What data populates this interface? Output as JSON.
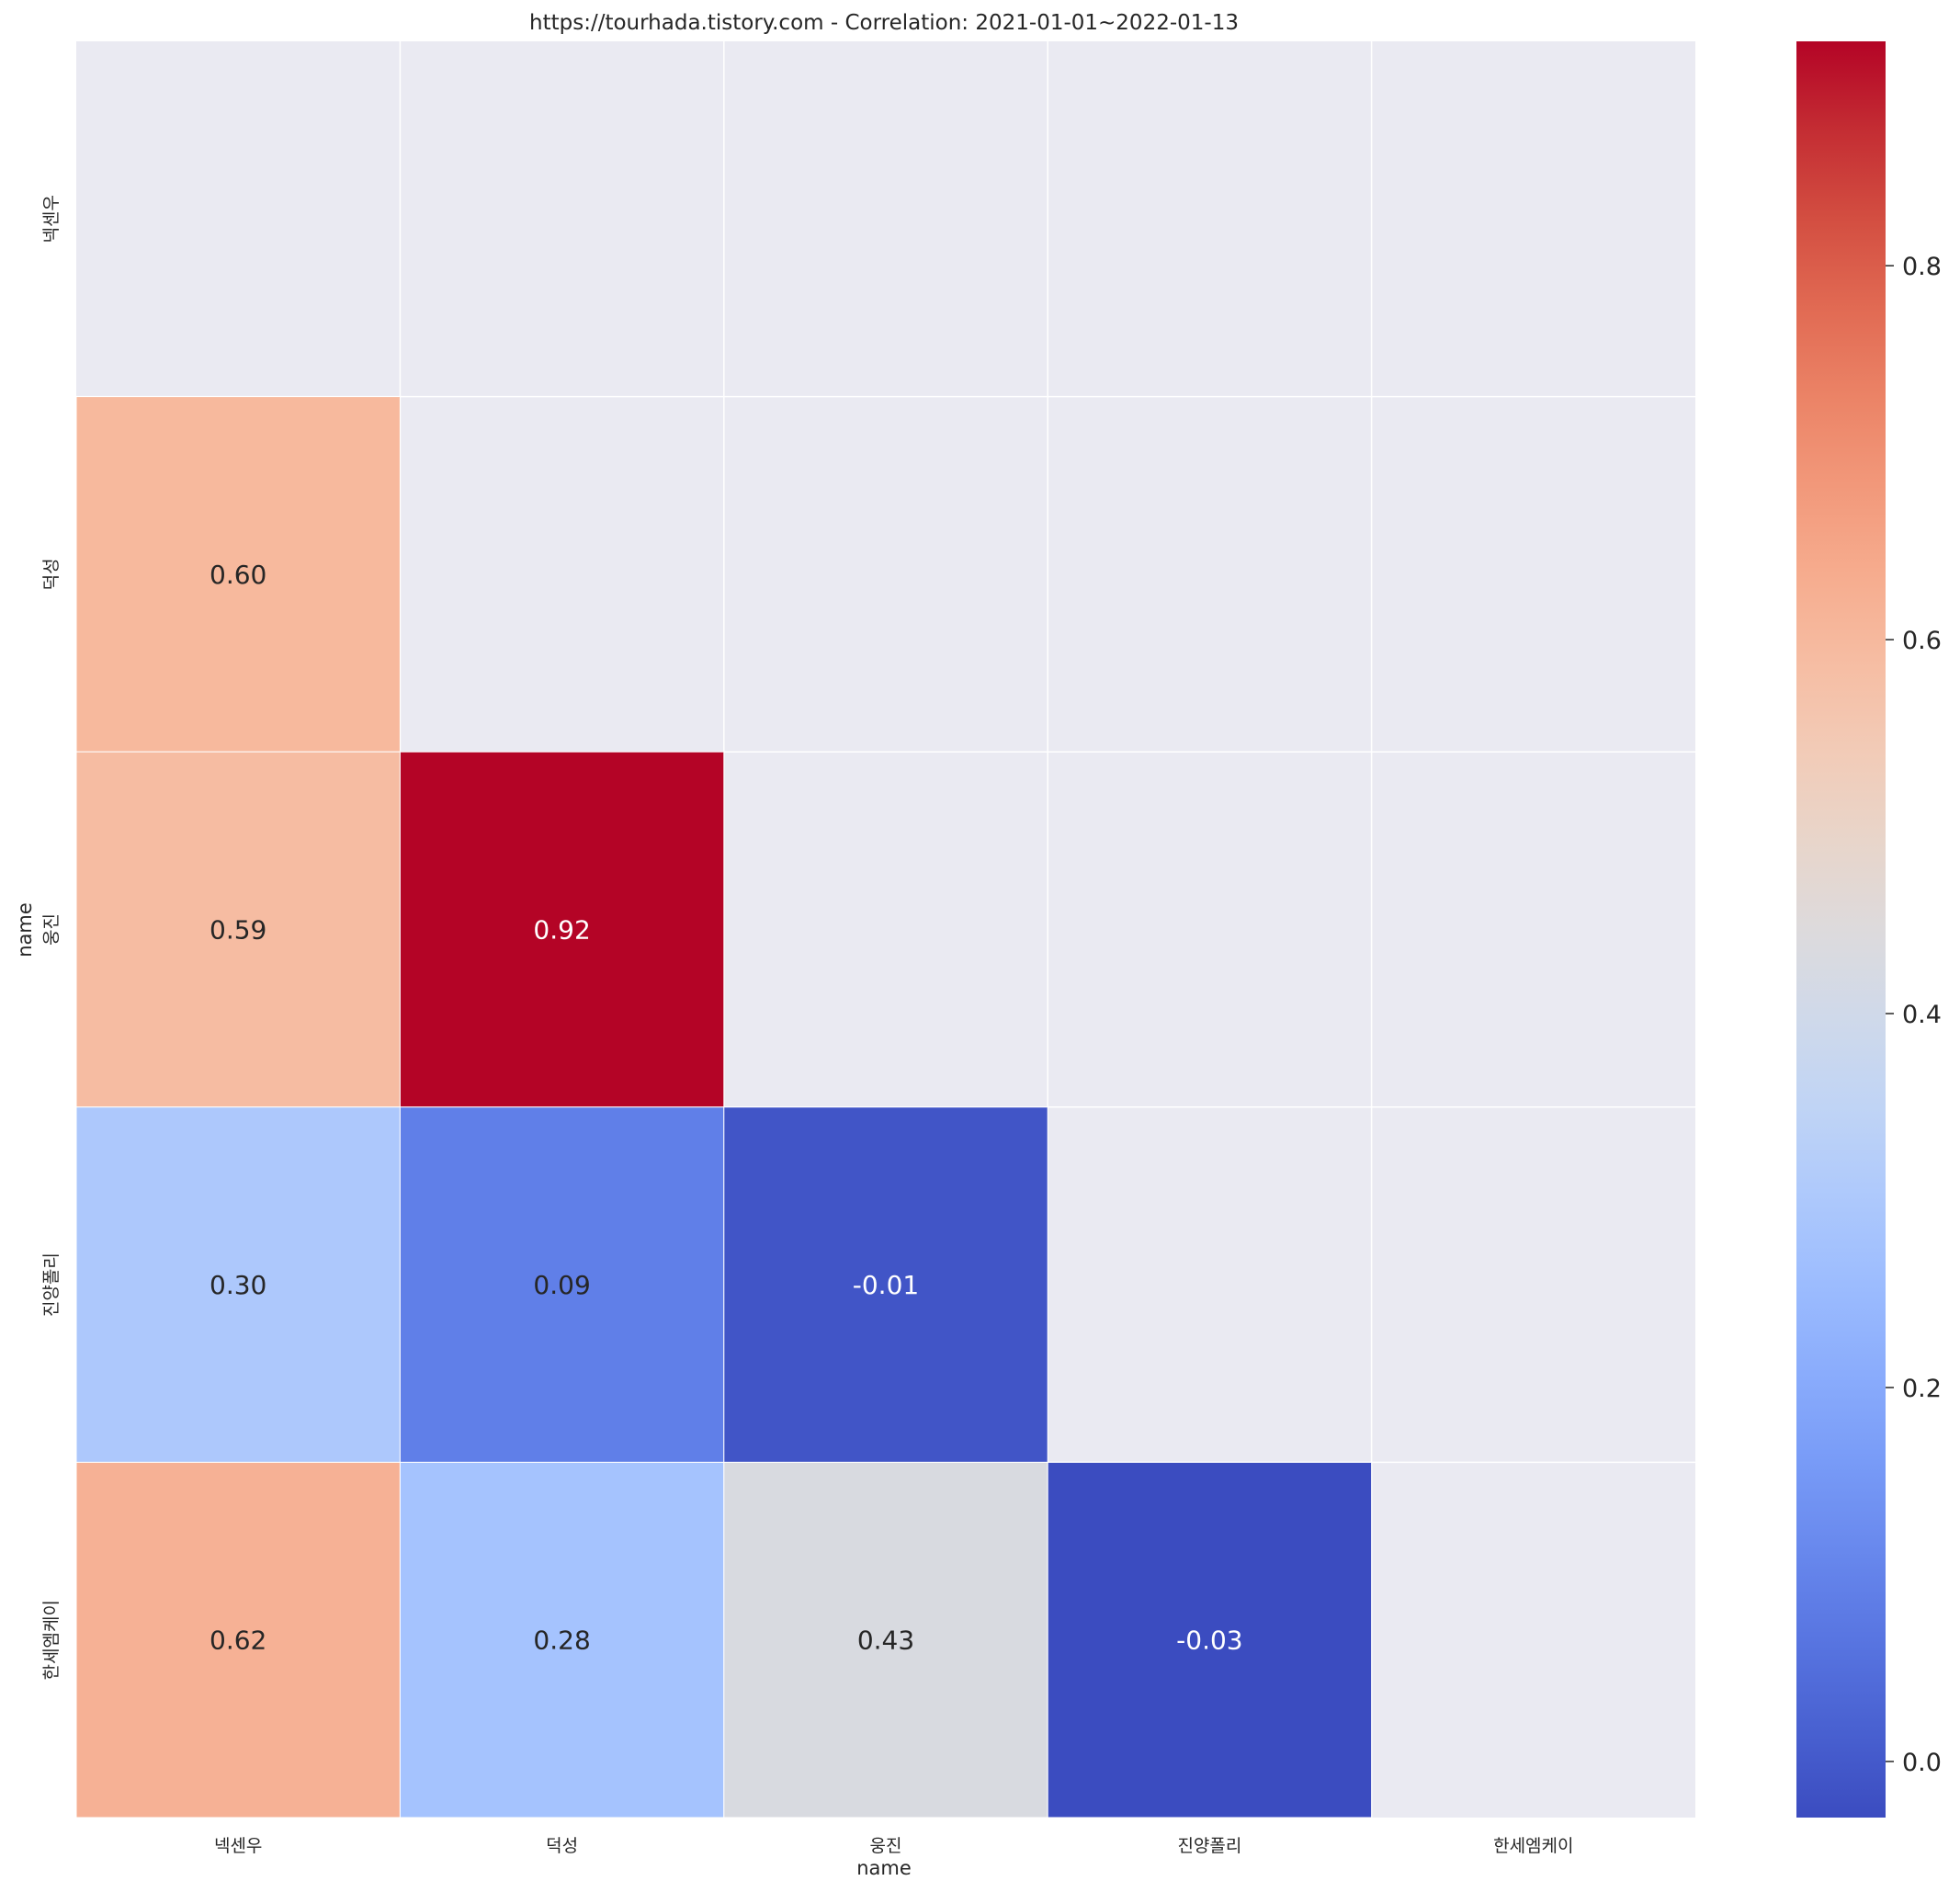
{
  "chart_data": {
    "type": "heatmap",
    "title": "https://tourhada.tistory.com - Correlation: 2021-01-01~2022-01-13",
    "xlabel": "name",
    "ylabel": "name",
    "x_categories": [
      "넥센우",
      "덕성",
      "웅진",
      "진양폴리",
      "한세엠케이"
    ],
    "y_categories": [
      "넥센우",
      "덕성",
      "웅진",
      "진양폴리",
      "한세엠케이"
    ],
    "cells": [
      {
        "row": 1,
        "col": 0,
        "value": 0.6,
        "label": "0.60"
      },
      {
        "row": 2,
        "col": 0,
        "value": 0.59,
        "label": "0.59"
      },
      {
        "row": 2,
        "col": 1,
        "value": 0.92,
        "label": "0.92"
      },
      {
        "row": 3,
        "col": 0,
        "value": 0.3,
        "label": "0.30"
      },
      {
        "row": 3,
        "col": 1,
        "value": 0.09,
        "label": "0.09"
      },
      {
        "row": 3,
        "col": 2,
        "value": -0.01,
        "label": "-0.01"
      },
      {
        "row": 4,
        "col": 0,
        "value": 0.62,
        "label": "0.62"
      },
      {
        "row": 4,
        "col": 1,
        "value": 0.28,
        "label": "0.28"
      },
      {
        "row": 4,
        "col": 2,
        "value": 0.43,
        "label": "0.43"
      },
      {
        "row": 4,
        "col": 3,
        "value": -0.03,
        "label": "-0.03"
      }
    ],
    "masked": "upper triangle and diagonal",
    "colormap": "coolwarm",
    "colorbar": {
      "vmin": -0.03,
      "vmax": 0.92,
      "ticks": [
        0.0,
        0.2,
        0.4,
        0.6,
        0.8
      ],
      "tick_labels": [
        "0.0",
        "0.2",
        "0.4",
        "0.6",
        "0.8"
      ]
    },
    "background_color": "#eaeaf2",
    "grid_line_color": "#ffffff"
  }
}
